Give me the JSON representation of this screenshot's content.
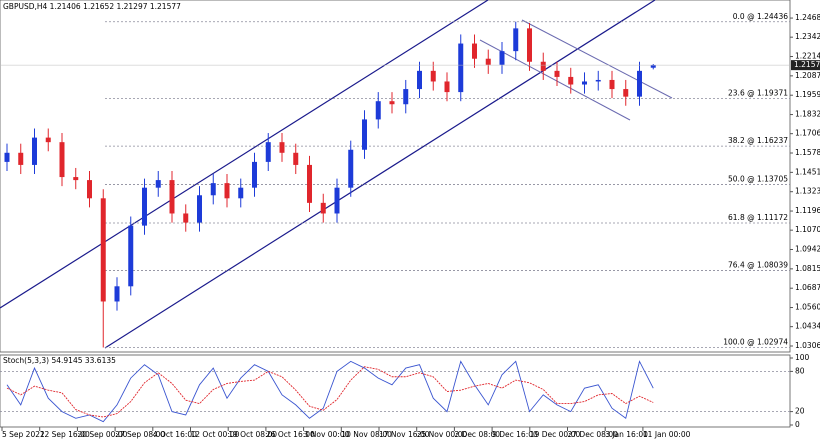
{
  "chart_data": {
    "type": "candlestick",
    "title": "GBPUSD,H4  1.21406 1.21652 1.21297 1.21577",
    "up_color": "#1d3bd8",
    "down_color": "#e0262c",
    "open": [
      1.152,
      1.158,
      1.15,
      1.168,
      1.165,
      1.142,
      1.14,
      1.128,
      1.06,
      1.07,
      1.11,
      1.135,
      1.14,
      1.118,
      1.112,
      1.13,
      1.138,
      1.128,
      1.135,
      1.152,
      1.165,
      1.158,
      1.15,
      1.125,
      1.118,
      1.135,
      1.16,
      1.18,
      1.192,
      1.19,
      1.2,
      1.212,
      1.205,
      1.198,
      1.23,
      1.22,
      1.216,
      1.225,
      1.24,
      1.218,
      1.212,
      1.208,
      1.203,
      1.205,
      1.206,
      1.2,
      1.195,
      1.21406
    ],
    "high": [
      1.164,
      1.164,
      1.174,
      1.174,
      1.171,
      1.148,
      1.146,
      1.134,
      1.076,
      1.116,
      1.141,
      1.146,
      1.146,
      1.124,
      1.136,
      1.144,
      1.144,
      1.141,
      1.158,
      1.171,
      1.171,
      1.164,
      1.156,
      1.131,
      1.141,
      1.166,
      1.186,
      1.198,
      1.198,
      1.206,
      1.218,
      1.218,
      1.211,
      1.236,
      1.236,
      1.226,
      1.231,
      1.2444,
      1.2435,
      1.224,
      1.218,
      1.214,
      1.211,
      1.212,
      1.212,
      1.206,
      1.218,
      1.21652
    ],
    "low": [
      1.146,
      1.144,
      1.144,
      1.159,
      1.136,
      1.134,
      1.122,
      1.0297,
      1.054,
      1.064,
      1.104,
      1.129,
      1.112,
      1.106,
      1.106,
      1.124,
      1.122,
      1.122,
      1.129,
      1.146,
      1.152,
      1.144,
      1.119,
      1.112,
      1.112,
      1.129,
      1.154,
      1.174,
      1.184,
      1.184,
      1.194,
      1.199,
      1.192,
      1.192,
      1.214,
      1.21,
      1.21,
      1.219,
      1.212,
      1.206,
      1.202,
      1.197,
      1.197,
      1.199,
      1.194,
      1.189,
      1.189,
      1.21297
    ],
    "close": [
      1.158,
      1.15,
      1.168,
      1.165,
      1.142,
      1.14,
      1.128,
      1.06,
      1.07,
      1.11,
      1.135,
      1.14,
      1.118,
      1.112,
      1.13,
      1.138,
      1.128,
      1.135,
      1.152,
      1.165,
      1.158,
      1.15,
      1.125,
      1.118,
      1.135,
      1.16,
      1.18,
      1.192,
      1.19,
      1.2,
      1.212,
      1.205,
      1.198,
      1.23,
      1.22,
      1.216,
      1.225,
      1.24,
      1.218,
      1.212,
      1.208,
      1.203,
      1.205,
      1.206,
      1.2,
      1.195,
      1.212,
      1.21577
    ],
    "last_price": 1.21577,
    "ylim": [
      1.0267,
      1.2587
    ],
    "yticks": [
      {
        "value": 1.2468,
        "label": "1.24680"
      },
      1.2342,
      1.22145,
      {
        "value": 1.2087,
        "label": "1.20870"
      },
      1.19595,
      {
        "value": 1.1832,
        "label": "1.18320"
      },
      {
        "value": 1.1706,
        "label": "1.17060"
      },
      1.15785,
      {
        "value": 1.1451,
        "label": "1.14510"
      },
      1.13235,
      {
        "value": 1.1196,
        "label": "1.11960"
      },
      {
        "value": 1.107,
        "label": "1.10700"
      },
      1.09425,
      {
        "value": 1.0815,
        "label": "1.08150"
      },
      1.06875,
      {
        "value": 1.056,
        "label": "1.05600"
      },
      {
        "value": 1.0434,
        "label": "1.04340"
      },
      1.03065
    ],
    "fib_levels": [
      {
        "value": 1.24436,
        "label": "0.0 @ 1.24436"
      },
      {
        "value": 1.19371,
        "label": "23.6 @ 1.19371"
      },
      {
        "value": 1.16237,
        "label": "38.2 @ 1.16237"
      },
      {
        "value": 1.13705,
        "label": "50.0 @ 1.13705"
      },
      {
        "value": 1.11172,
        "label": "61.8 @ 1.11172"
      },
      {
        "value": 1.08039,
        "label": "76.4 @ 1.08039"
      },
      {
        "value": 1.02974,
        "label": "100.0 @ 1.02974"
      }
    ],
    "x_labels": [
      "5 Sep 2022",
      "12 Sep 16:00",
      "20 Sep 00:00",
      "27 Sep 08:00",
      "4 Oct 16:00",
      "12 Oct 00:00",
      "19 Oct 08:00",
      "26 Oct 16:00",
      "3 Nov 00:00",
      "10 Nov 08:00",
      "17 Nov 16:00",
      "25 Nov 00:00",
      "2 Dec 08:00",
      "9 Dec 16:00",
      "19 Dec 00:00",
      "27 Dec 08:00",
      "3 Jan 16:00",
      "11 Jan 00:00"
    ],
    "stoch": {
      "title": "Stoch(5,3,3) 54.9145 33.6135",
      "ylim": [
        0,
        100
      ],
      "yticks": [
        100,
        80,
        20,
        0
      ],
      "levels": [
        80,
        20
      ],
      "series": [
        {
          "color": "#3a55d0",
          "values": [
            60,
            30,
            85,
            40,
            20,
            10,
            15,
            5,
            30,
            70,
            90,
            75,
            20,
            15,
            60,
            85,
            40,
            70,
            90,
            80,
            45,
            30,
            10,
            25,
            80,
            95,
            85,
            70,
            60,
            85,
            90,
            40,
            20,
            95,
            60,
            30,
            75,
            95,
            20,
            45,
            30,
            20,
            55,
            60,
            25,
            10,
            95,
            54.9145
          ]
        },
        {
          "color": "#e0262c",
          "values": [
            55,
            45,
            58,
            52,
            48,
            23,
            15,
            12,
            17,
            35,
            63,
            78,
            62,
            37,
            32,
            53,
            62,
            65,
            67,
            80,
            72,
            52,
            28,
            22,
            38,
            67,
            87,
            83,
            72,
            72,
            78,
            72,
            50,
            52,
            58,
            62,
            55,
            67,
            63,
            53,
            32,
            32,
            35,
            45,
            47,
            32,
            43,
            33.6135
          ]
        }
      ]
    }
  }
}
